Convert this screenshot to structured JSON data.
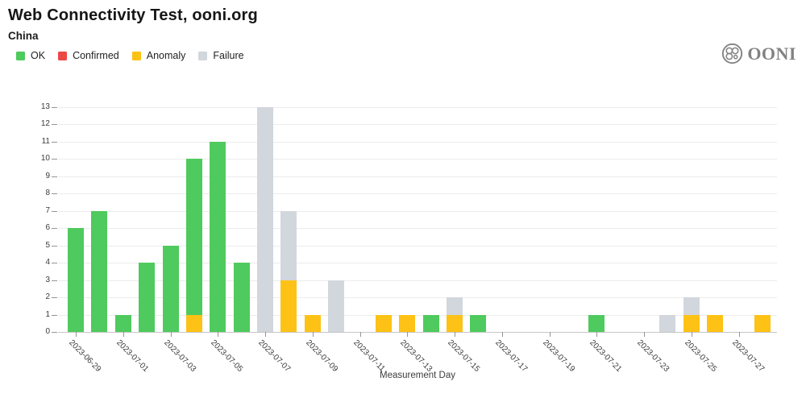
{
  "header": {
    "title": "Web Connectivity Test, ooni.org",
    "subtitle": "China",
    "logo_text": "OONI"
  },
  "legend": [
    {
      "key": "ok",
      "label": "OK",
      "color": "#4FCA5E"
    },
    {
      "key": "confirmed",
      "label": "Confirmed",
      "color": "#EB4945"
    },
    {
      "key": "anomaly",
      "label": "Anomaly",
      "color": "#FDC215"
    },
    {
      "key": "failure",
      "label": "Failure",
      "color": "#D2D6DD"
    }
  ],
  "chart_data": {
    "type": "bar",
    "stacked": true,
    "title": "Web Connectivity Test, ooni.org",
    "subtitle": "China",
    "xlabel": "Measurement Day",
    "ylabel": "",
    "ylim": [
      0,
      13
    ],
    "yticks": [
      0,
      1,
      2,
      3,
      4,
      5,
      6,
      7,
      8,
      9,
      10,
      11,
      12,
      13
    ],
    "grid": "horizontal",
    "legend_position": "top-left",
    "categories": [
      "2023-06-29",
      "2023-06-30",
      "2023-07-01",
      "2023-07-02",
      "2023-07-03",
      "2023-07-04",
      "2023-07-05",
      "2023-07-06",
      "2023-07-07",
      "2023-07-08",
      "2023-07-09",
      "2023-07-10",
      "2023-07-11",
      "2023-07-12",
      "2023-07-13",
      "2023-07-14",
      "2023-07-15",
      "2023-07-16",
      "2023-07-17",
      "2023-07-18",
      "2023-07-19",
      "2023-07-20",
      "2023-07-21",
      "2023-07-22",
      "2023-07-23",
      "2023-07-24",
      "2023-07-25",
      "2023-07-26",
      "2023-07-27",
      "2023-07-28"
    ],
    "x_tick_labels": [
      "2023-06-29",
      "2023-07-01",
      "2023-07-03",
      "2023-07-05",
      "2023-07-07",
      "2023-07-09",
      "2023-07-11",
      "2023-07-13",
      "2023-07-15",
      "2023-07-17",
      "2023-07-19",
      "2023-07-21",
      "2023-07-23",
      "2023-07-25",
      "2023-07-27"
    ],
    "x_tick_every_n_days": 2,
    "series": [
      {
        "name": "OK",
        "color": "#4FCA5E",
        "values": [
          6,
          7,
          1,
          4,
          5,
          9,
          11,
          4,
          0,
          0,
          0,
          0,
          0,
          0,
          0,
          1,
          0,
          1,
          0,
          0,
          0,
          0,
          1,
          0,
          0,
          0,
          0,
          0,
          0,
          0
        ]
      },
      {
        "name": "Confirmed",
        "color": "#EB4945",
        "values": [
          0,
          0,
          0,
          0,
          0,
          0,
          0,
          0,
          0,
          0,
          0,
          0,
          0,
          0,
          0,
          0,
          0,
          0,
          0,
          0,
          0,
          0,
          0,
          0,
          0,
          0,
          0,
          0,
          0,
          0
        ]
      },
      {
        "name": "Anomaly",
        "color": "#FDC215",
        "values": [
          0,
          0,
          0,
          0,
          0,
          1,
          0,
          0,
          0,
          3,
          1,
          0,
          0,
          1,
          1,
          0,
          1,
          0,
          0,
          0,
          0,
          0,
          0,
          0,
          0,
          0,
          1,
          1,
          0,
          1
        ]
      },
      {
        "name": "Failure",
        "color": "#D2D6DD",
        "values": [
          0,
          0,
          0,
          0,
          0,
          0,
          0,
          0,
          13,
          4,
          0,
          3,
          0,
          0,
          0,
          0,
          1,
          0,
          0,
          0,
          0,
          0,
          0,
          0,
          0,
          1,
          1,
          0,
          0,
          0
        ]
      }
    ],
    "stack_order_bottom_to_top": [
      "Anomaly",
      "Confirmed",
      "OK",
      "Failure"
    ],
    "bar_totals": [
      6,
      7,
      1,
      4,
      5,
      10,
      11,
      4,
      13,
      7,
      1,
      3,
      0,
      1,
      1,
      1,
      2,
      1,
      0,
      0,
      0,
      0,
      1,
      0,
      0,
      1,
      2,
      1,
      0,
      1
    ]
  }
}
